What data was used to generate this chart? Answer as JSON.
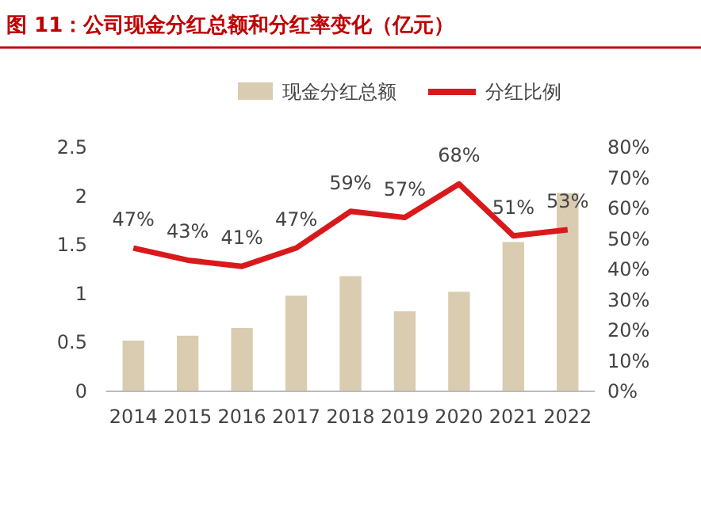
{
  "chart_data": {
    "type": "bar",
    "title": "图 11：公司现金分红总额和分红率变化（亿元）",
    "categories": [
      "2014",
      "2015",
      "2016",
      "2017",
      "2018",
      "2019",
      "2020",
      "2021",
      "2022"
    ],
    "series": [
      {
        "name": "现金分红总额",
        "color": "#d9ccb0",
        "values": [
          0.52,
          0.57,
          0.65,
          0.98,
          1.18,
          0.82,
          1.02,
          1.53,
          2.03
        ]
      },
      {
        "name": "分红比例",
        "type": "line",
        "axis": "y2",
        "color": "#d9191c",
        "values": [
          47,
          43,
          41,
          47,
          59,
          57,
          68,
          51,
          53
        ],
        "value_labels": [
          "47%",
          "43%",
          "41%",
          "47%",
          "59%",
          "57%",
          "68%",
          "51%",
          "53%"
        ]
      }
    ],
    "ylim": [
      0,
      2.5
    ],
    "yticks": [
      0,
      {
        "value": 0.5,
        "label": "0.5"
      },
      1,
      {
        "value": 1.5,
        "label": "1.5"
      },
      2,
      {
        "value": 2.5,
        "label": "2.5"
      }
    ],
    "y2lim": [
      0,
      80
    ],
    "y2ticks": [
      {
        "value": 0,
        "label": "0%"
      },
      {
        "value": 10,
        "label": "10%"
      },
      {
        "value": 20,
        "label": "20%"
      },
      {
        "value": 30,
        "label": "30%"
      },
      {
        "value": 40,
        "label": "40%"
      },
      {
        "value": 50,
        "label": "50%"
      },
      {
        "value": 60,
        "label": "60%"
      },
      {
        "value": 70,
        "label": "70%"
      },
      {
        "value": 80,
        "label": "80%"
      }
    ],
    "legend": "top",
    "grid": false
  }
}
